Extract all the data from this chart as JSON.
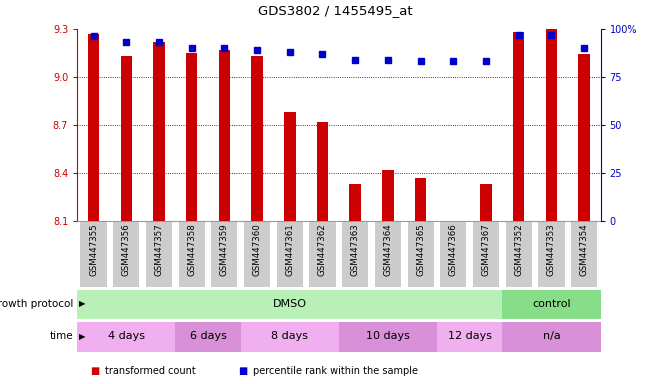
{
  "title": "GDS3802 / 1455495_at",
  "samples": [
    "GSM447355",
    "GSM447356",
    "GSM447357",
    "GSM447358",
    "GSM447359",
    "GSM447360",
    "GSM447361",
    "GSM447362",
    "GSM447363",
    "GSM447364",
    "GSM447365",
    "GSM447366",
    "GSM447367",
    "GSM447352",
    "GSM447353",
    "GSM447354"
  ],
  "transformed_count": [
    9.27,
    9.13,
    9.22,
    9.15,
    9.17,
    9.13,
    8.78,
    8.72,
    8.33,
    8.42,
    8.37,
    8.1,
    8.33,
    9.28,
    9.3,
    9.14
  ],
  "percentile_rank": [
    96,
    93,
    93,
    90,
    90,
    89,
    88,
    87,
    84,
    84,
    83,
    83,
    83,
    97,
    97,
    90
  ],
  "ymin": 8.1,
  "ymax": 9.3,
  "yticks_left": [
    8.1,
    8.4,
    8.7,
    9.0,
    9.3
  ],
  "yticks_right": [
    0,
    25,
    50,
    75,
    100
  ],
  "bar_color": "#cc0000",
  "dot_color": "#0000cc",
  "bar_width": 0.35,
  "growth_protocol_groups": [
    {
      "label": "DMSO",
      "start": 0,
      "end": 13,
      "color": "#b8f0b8"
    },
    {
      "label": "control",
      "start": 13,
      "end": 16,
      "color": "#88dd88"
    }
  ],
  "time_groups": [
    {
      "label": "4 days",
      "start": 0,
      "end": 3,
      "color": "#f0b0f0"
    },
    {
      "label": "6 days",
      "start": 3,
      "end": 5,
      "color": "#d890d8"
    },
    {
      "label": "8 days",
      "start": 5,
      "end": 8,
      "color": "#f0b0f0"
    },
    {
      "label": "10 days",
      "start": 8,
      "end": 11,
      "color": "#d890d8"
    },
    {
      "label": "12 days",
      "start": 11,
      "end": 13,
      "color": "#f0b0f0"
    },
    {
      "label": "n/a",
      "start": 13,
      "end": 16,
      "color": "#d890d8"
    }
  ],
  "legend_items": [
    {
      "label": "transformed count",
      "color": "#cc0000"
    },
    {
      "label": "percentile rank within the sample",
      "color": "#0000cc"
    }
  ],
  "bg_color": "#ffffff",
  "tick_bg_color": "#cccccc",
  "spine_color": "#999999"
}
